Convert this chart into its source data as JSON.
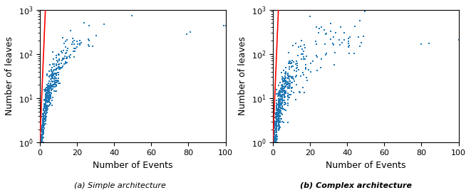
{
  "xlabel": "Number of Events",
  "ylabel": "Number of leaves",
  "xlim": [
    0,
    100
  ],
  "ylim": [
    1,
    1000
  ],
  "dot_color": "#1f77b4",
  "dot_size": 2,
  "line_color": "red",
  "line_width": 1.2,
  "figsize": [
    6.61,
    2.67
  ],
  "dpi": 100,
  "caption_a": "(a) Simple architecture",
  "caption_b": "(b) Complex architecture",
  "caption_fontsize": 8,
  "tick_fontsize": 8,
  "label_fontsize": 9,
  "red_line_slope": 1.0,
  "red_line_x_end": 3.0
}
